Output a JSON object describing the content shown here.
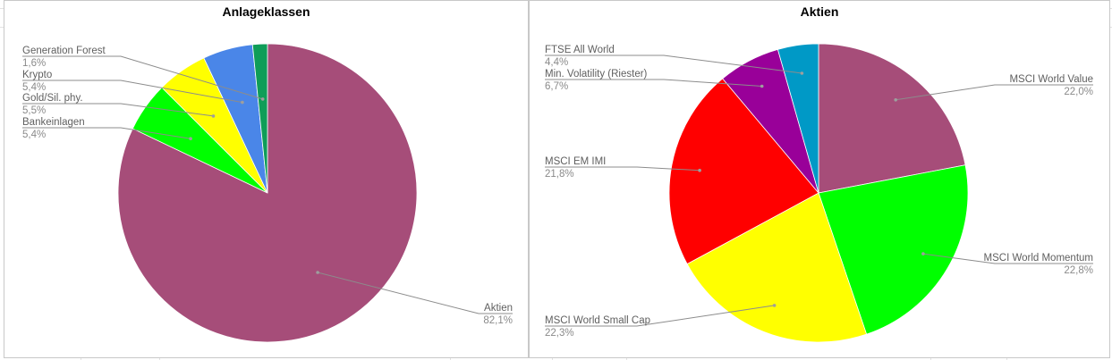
{
  "chart_data": [
    {
      "type": "pie",
      "title": "Anlageklassen",
      "slices": [
        {
          "label": "Aktien",
          "pct_label": "82,1%",
          "value": 82.1,
          "color": "#a64d79"
        },
        {
          "label": "Bankeinlagen",
          "pct_label": "5,4%",
          "value": 5.4,
          "color": "#00ff00"
        },
        {
          "label": "Gold/Sil. phy.",
          "pct_label": "5,5%",
          "value": 5.5,
          "color": "#ffff00"
        },
        {
          "label": "Krypto",
          "pct_label": "5,4%",
          "value": 5.4,
          "color": "#4a86e8"
        },
        {
          "label": "Generation Forest",
          "pct_label": "1,6%",
          "value": 1.6,
          "color": "#0f9d58"
        }
      ]
    },
    {
      "type": "pie",
      "title": "Aktien",
      "slices": [
        {
          "label": "MSCI World Value",
          "pct_label": "22,0%",
          "value": 22.0,
          "color": "#a64d79"
        },
        {
          "label": "MSCI World Momentum",
          "pct_label": "22,8%",
          "value": 22.8,
          "color": "#00ff00"
        },
        {
          "label": "MSCI World Small Cap",
          "pct_label": "22,3%",
          "value": 22.3,
          "color": "#ffff00"
        },
        {
          "label": "MSCI EM IMI",
          "pct_label": "21,8%",
          "value": 21.8,
          "color": "#ff0000"
        },
        {
          "label": "Min. Volatility (Riester)",
          "pct_label": "6,7%",
          "value": 6.7,
          "color": "#990099"
        },
        {
          "label": "FTSE All World",
          "pct_label": "4,4%",
          "value": 4.4,
          "color": "#0099c6"
        }
      ]
    }
  ]
}
